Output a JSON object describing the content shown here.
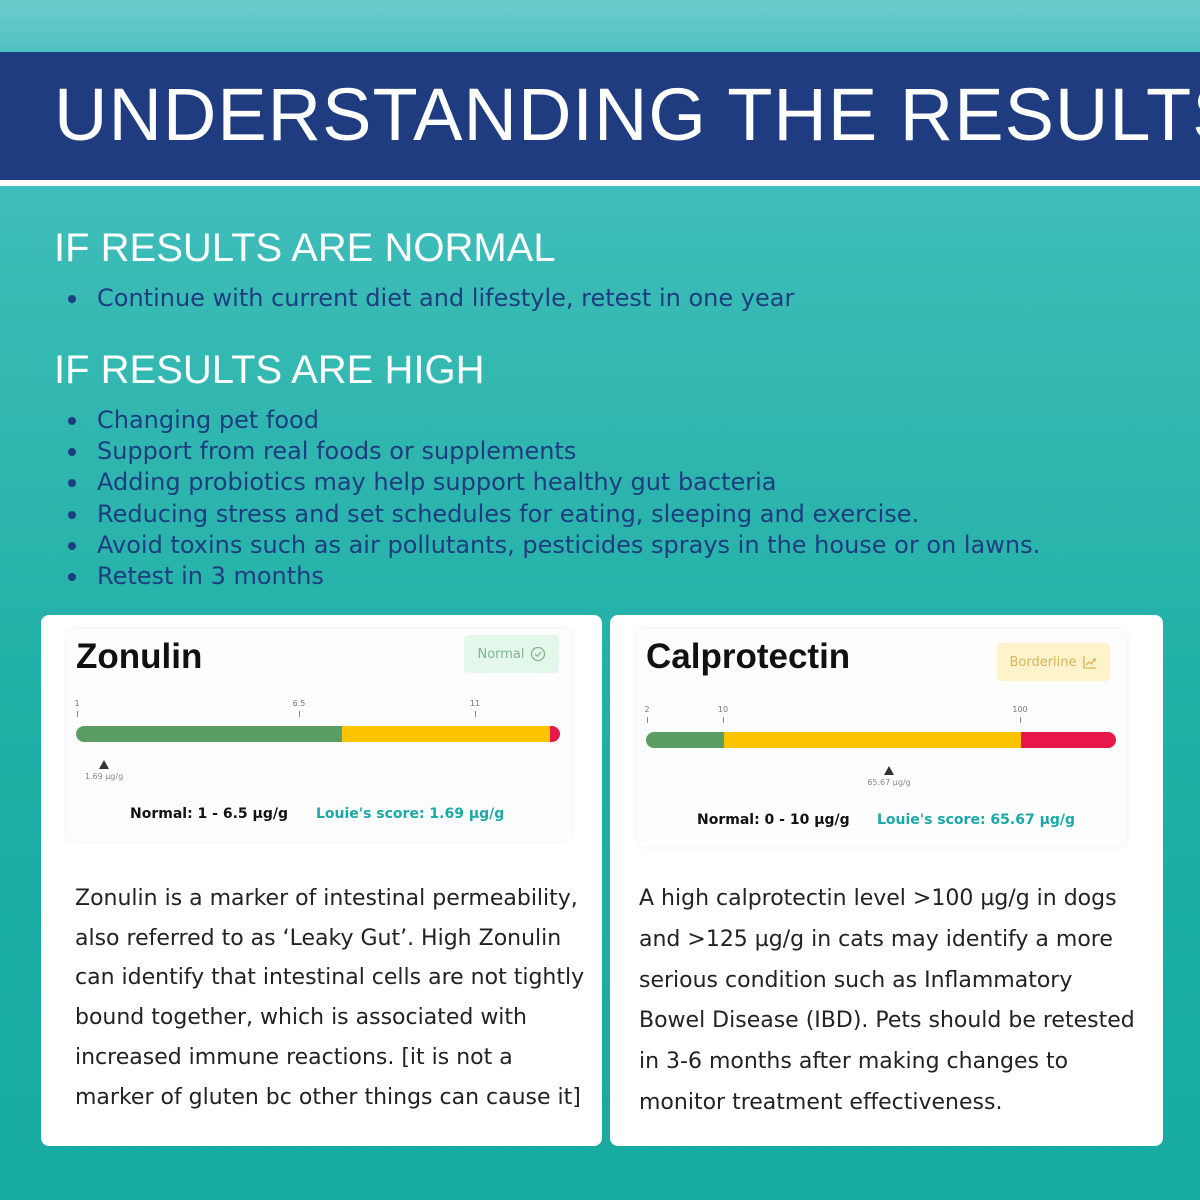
{
  "banner": {
    "title": "UNDERSTANDING THE RESULTS"
  },
  "normal_section": {
    "heading": "IF RESULTS ARE NORMAL",
    "bullets": [
      "Continue with current diet and lifestyle, retest in one year"
    ]
  },
  "high_section": {
    "heading": "IF RESULTS ARE HIGH",
    "bullets": [
      "Changing pet food",
      "Support from real foods or supplements",
      "Adding probiotics may help support healthy gut bacteria",
      "Reducing stress and set schedules for eating, sleeping and exercise.",
      "Avoid toxins such as air pollutants, pesticides sprays in the house or on lawns.",
      "Retest in 3 months"
    ]
  },
  "colors": {
    "banner_bg": "#1f3c80",
    "bullet_text": "#1e3d80",
    "bar_green": "#5a9e64",
    "bar_yellow": "#fcc400",
    "bar_red": "#e8184a",
    "score_text": "#19a9a8"
  },
  "zonulin": {
    "title": "Zonulin",
    "status_badge": "Normal",
    "status_icon": "check-circle-icon",
    "ticks": [
      "1",
      "6.5",
      "11"
    ],
    "segments": [
      {
        "color": "green",
        "fraction": 0.55
      },
      {
        "color": "yellow",
        "fraction": 0.43
      },
      {
        "color": "red",
        "fraction": 0.02
      }
    ],
    "score_value": 1.69,
    "score_tiny": "1.69 µg/g",
    "normal_range": "Normal: 1 - 6.5 µg/g",
    "score_label": "Louie's score: 1.69 µg/g",
    "description_lines": [
      "Zonulin is a marker of intestinal permeability,",
      "also referred to as ‘Leaky Gut’. High Zonulin",
      "can identify that intestinal cells are not tightly",
      "bound together, which is associated with",
      "increased immune reactions. [it is not a",
      "marker of gluten bc other things can cause it]"
    ]
  },
  "calprotectin": {
    "title": "Calprotectin",
    "status_badge": "Borderline",
    "status_icon": "trend-up-icon",
    "ticks": [
      "2",
      "10",
      "100"
    ],
    "segments": [
      {
        "color": "green",
        "fraction": 0.167
      },
      {
        "color": "yellow",
        "fraction": 0.63
      },
      {
        "color": "red",
        "fraction": 0.203
      }
    ],
    "score_value": 65.67,
    "score_tiny": "65.67 µg/g",
    "normal_range": "Normal: 0 - 10 µg/g",
    "score_label": "Louie's score: 65.67 µg/g",
    "description_lines": [
      "A high calprotectin level >100 µg/g in dogs",
      "and >125 µg/g in cats may identify a more",
      "serious condition such as Inflammatory",
      "Bowel Disease (IBD). Pets should be retested",
      "in 3-6 months after making changes to",
      "monitor treatment effectiveness."
    ]
  }
}
